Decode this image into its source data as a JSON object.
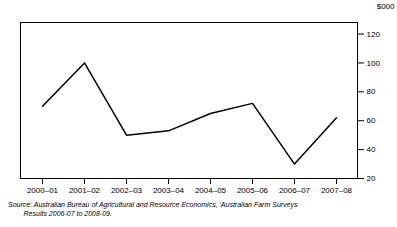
{
  "chart_data": {
    "type": "line",
    "categories": [
      "2000–01",
      "2001–02",
      "2002–03",
      "2003–04",
      "2004–05",
      "2005–06",
      "2006–07",
      "2007–08"
    ],
    "values": [
      70,
      100,
      50,
      53,
      65,
      72,
      30,
      62
    ],
    "color": "#000000",
    "ylabel": "$000",
    "ylim": [
      20,
      128
    ],
    "yticks": [
      20,
      40,
      60,
      80,
      100,
      120
    ],
    "grid": false,
    "caption": "Source: Australian Bureau of Agricultural and Resource Economics, 'Australian Farm Surveys\n        Results 2006-07 to 2008-09."
  }
}
